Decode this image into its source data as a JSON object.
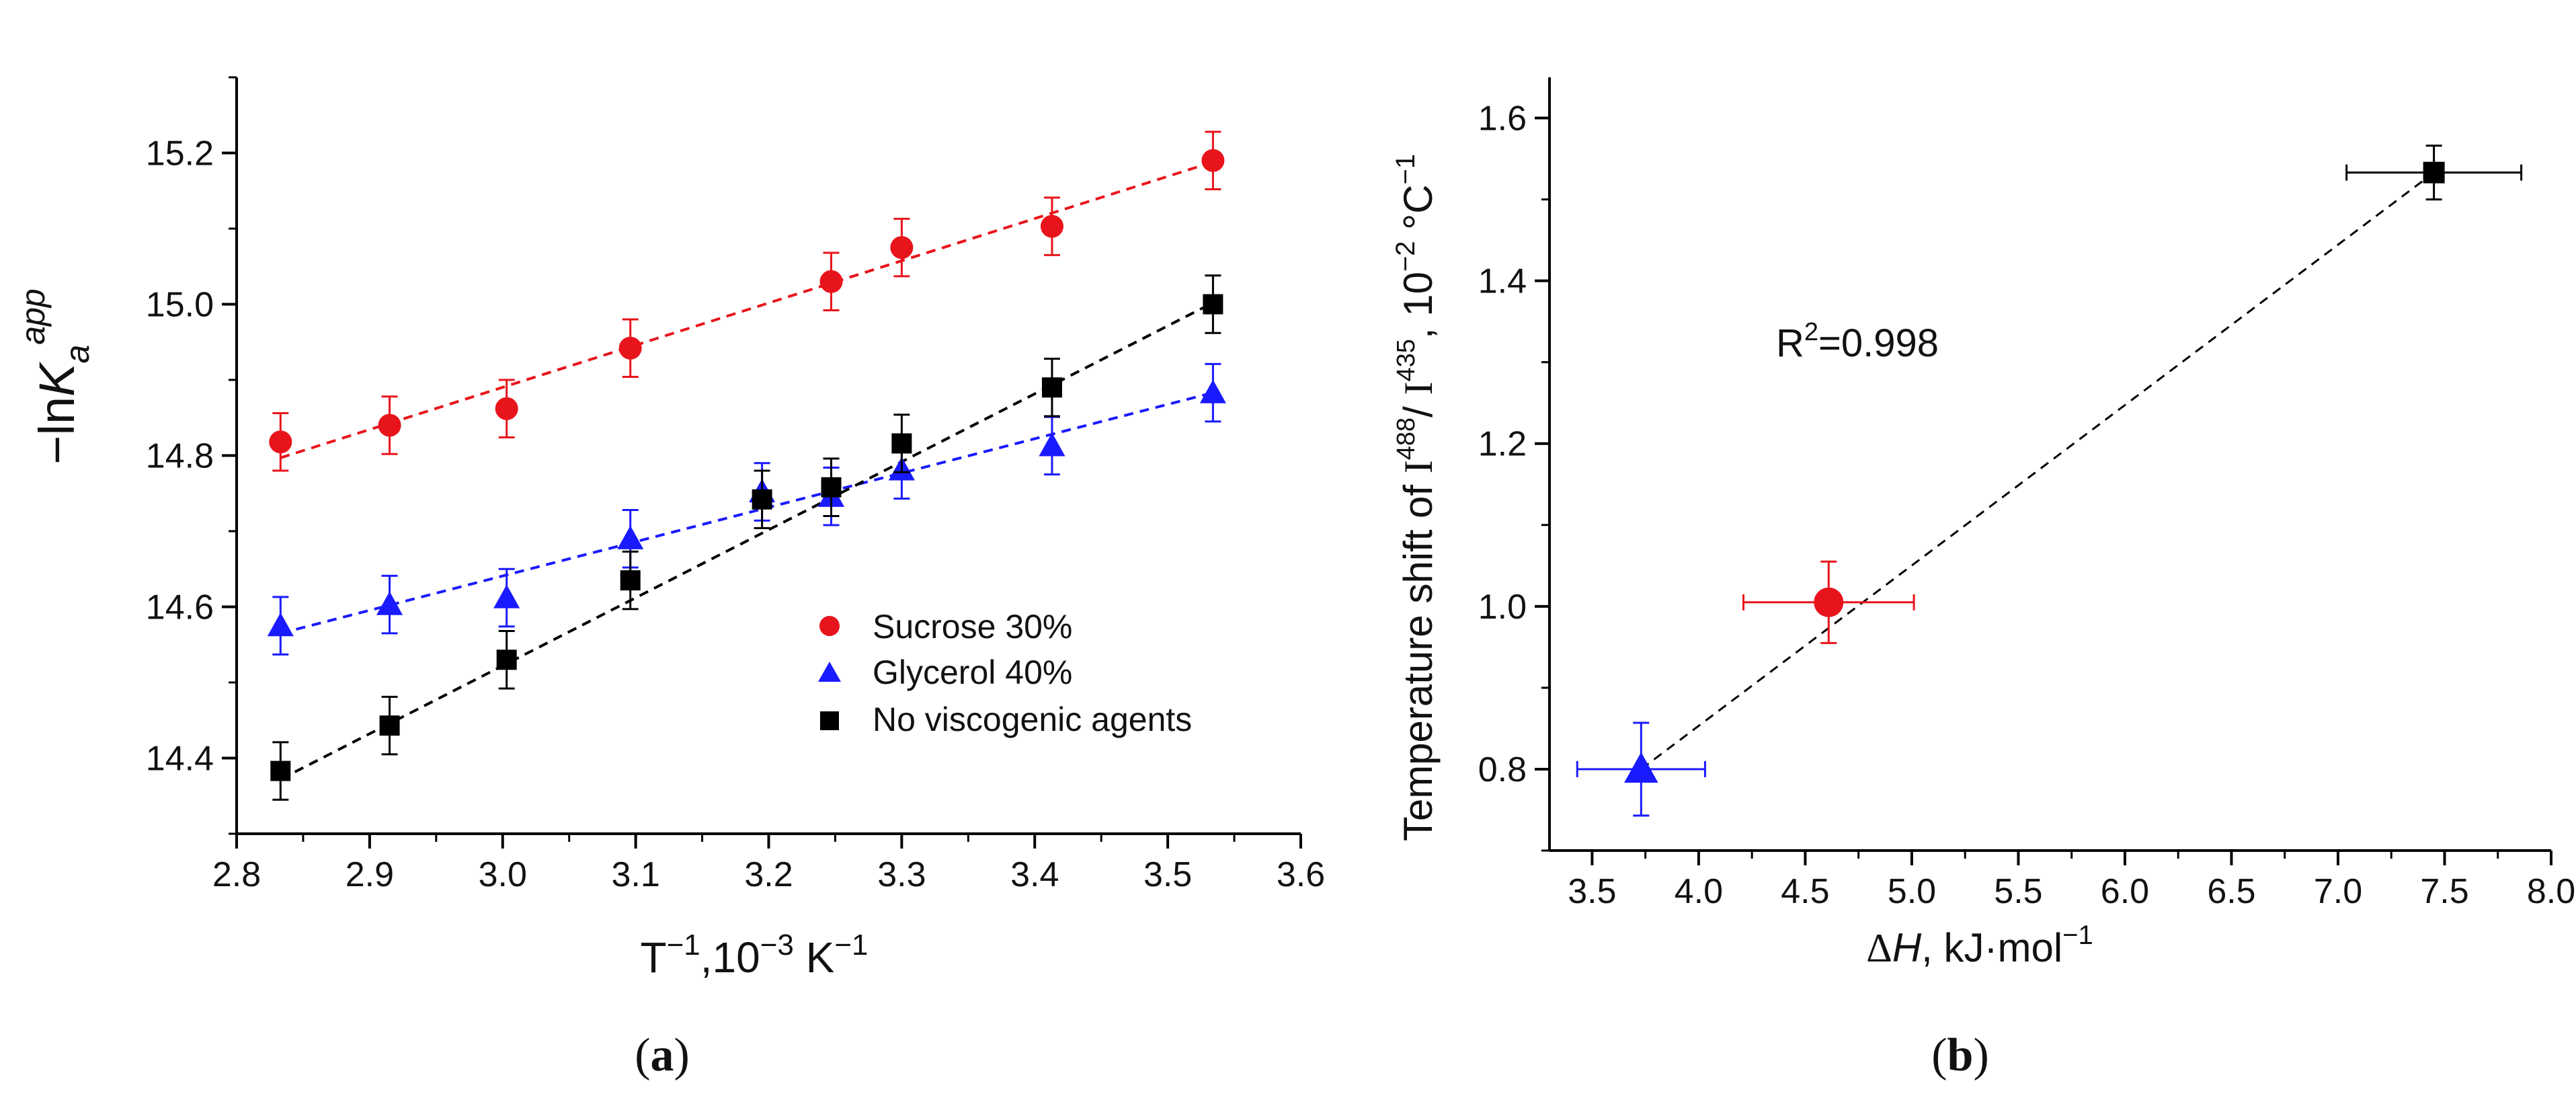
{
  "chart_data": [
    {
      "type": "scatter",
      "panel_label": "(a)",
      "xlabel_parts": [
        "T",
        "−1",
        ",10",
        "−3",
        " K",
        "−1"
      ],
      "ylabel_parts": [
        "−ln",
        "K",
        "a",
        "app"
      ],
      "xlim": [
        2.8,
        3.6
      ],
      "ylim": [
        14.3,
        15.3
      ],
      "xticks": [
        2.8,
        2.9,
        3.0,
        3.1,
        3.2,
        3.3,
        3.4,
        3.5,
        3.6
      ],
      "yticks": [
        14.4,
        14.6,
        14.8,
        15.0,
        15.2
      ],
      "xtick_labels": [
        "2.8",
        "2.9",
        "3.0",
        "3.1",
        "3.2",
        "3.3",
        "3.4",
        "3.5",
        "3.6"
      ],
      "ytick_labels": [
        "14.4",
        "14.6",
        "14.8",
        "15.0",
        "15.2"
      ],
      "legend_position": "lower-right",
      "series": [
        {
          "name": "Sucrose 30%",
          "marker": "circle",
          "color": "#e8141b",
          "x": [
            2.833,
            2.915,
            3.003,
            3.096,
            3.247,
            3.3,
            3.413,
            3.534
          ],
          "y": [
            14.818,
            14.84,
            14.862,
            14.942,
            15.03,
            15.075,
            15.103,
            15.19
          ],
          "yerr": 0.038,
          "fit": [
            [
              2.833,
              14.797
            ],
            [
              3.534,
              15.188
            ]
          ]
        },
        {
          "name": "Glycerol 40%",
          "marker": "triangle",
          "color": "#1a1aff",
          "x": [
            2.833,
            2.915,
            3.003,
            3.096,
            3.195,
            3.247,
            3.3,
            3.413,
            3.534
          ],
          "y": [
            14.575,
            14.603,
            14.612,
            14.69,
            14.752,
            14.746,
            14.781,
            14.813,
            14.883
          ],
          "yerr": 0.038,
          "fit": [
            [
              2.833,
              14.565
            ],
            [
              3.534,
              14.883
            ]
          ]
        },
        {
          "name": "No viscogenic agents",
          "marker": "square",
          "color": "#000000",
          "x": [
            2.833,
            2.915,
            3.003,
            3.096,
            3.195,
            3.247,
            3.3,
            3.413,
            3.534
          ],
          "y": [
            14.383,
            14.443,
            14.53,
            14.635,
            14.742,
            14.758,
            14.816,
            14.89,
            15.0
          ],
          "yerr": 0.038,
          "fit": [
            [
              2.833,
              14.372
            ],
            [
              3.534,
              15.002
            ]
          ]
        }
      ]
    },
    {
      "type": "scatter",
      "panel_label": "(b)",
      "xlabel_parts": [
        "Δ",
        "H",
        ", kJ·mol",
        "−1"
      ],
      "ylabel_parts": [
        "Temperature shift of ",
        "I",
        "488",
        "/ ",
        "I",
        "435",
        ", 10",
        "−2",
        " °C",
        "−1"
      ],
      "xlim": [
        3.3,
        8.0
      ],
      "ylim": [
        0.7,
        1.65
      ],
      "xticks": [
        3.5,
        4.0,
        4.5,
        5.0,
        5.5,
        6.0,
        6.5,
        7.0,
        7.5,
        8.0
      ],
      "yticks": [
        0.8,
        1.0,
        1.2,
        1.4,
        1.6
      ],
      "xtick_labels": [
        "3.5",
        "4.0",
        "4.5",
        "5.0",
        "5.5",
        "6.0",
        "6.5",
        "7.0",
        "7.5",
        "8.0"
      ],
      "ytick_labels": [
        "0.8",
        "1.0",
        "1.2",
        "1.4",
        "1.6"
      ],
      "annotation_parts": [
        "R",
        "2",
        "=0.998"
      ],
      "fit": [
        [
          3.73,
          0.8
        ],
        [
          7.45,
          1.533
        ]
      ],
      "points": [
        {
          "marker": "triangle",
          "color": "#1a1aff",
          "x": 3.73,
          "y": 0.8,
          "xerr": 0.3,
          "yerr": 0.057
        },
        {
          "marker": "circle",
          "color": "#e8141b",
          "x": 4.61,
          "y": 1.005,
          "xerr": 0.4,
          "yerr": 0.05
        },
        {
          "marker": "square",
          "color": "#000000",
          "x": 7.45,
          "y": 1.533,
          "xerr": 0.41,
          "yerr": 0.033
        }
      ]
    }
  ]
}
